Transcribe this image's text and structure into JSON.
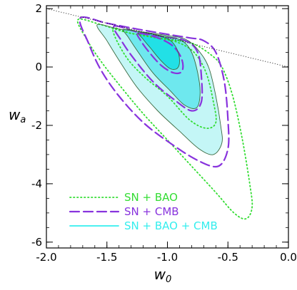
{
  "chart_data": {
    "type": "contour",
    "xlabel": "w",
    "xlabel_sub": "0",
    "ylabel": "w",
    "ylabel_sub": "a",
    "xlim": [
      -2.0,
      0.0
    ],
    "ylim": [
      -6.2,
      2.1
    ],
    "xticks": [
      -2.0,
      -1.5,
      -1.0,
      -0.5,
      0.0
    ],
    "xtick_labels": [
      "-2.0",
      "-1.5",
      "-1.0",
      "-0.5",
      "0.0"
    ],
    "yticks": [
      2,
      0,
      -2,
      -4,
      -6
    ],
    "ytick_labels": [
      "2",
      "0",
      "-2",
      "-4",
      "-6"
    ],
    "grid": false,
    "legend_position": "bottom-left",
    "reference_line": {
      "style": "dotted",
      "color": "#000000",
      "points": [
        [
          -2.0,
          2.0
        ],
        [
          0.0,
          0.0
        ]
      ]
    },
    "series": [
      {
        "name": "SN + BAO",
        "style": "dotted",
        "color": "#33dd33",
        "contours": [
          [
            [
              -1.74,
              1.62
            ],
            [
              -1.55,
              1.45
            ],
            [
              -1.35,
              1.2
            ],
            [
              -1.15,
              1.05
            ],
            [
              -0.95,
              0.92
            ],
            [
              -0.8,
              0.82
            ],
            [
              -0.65,
              0.45
            ],
            [
              -0.55,
              0.0
            ],
            [
              -0.46,
              -1.0
            ],
            [
              -0.38,
              -2.5
            ],
            [
              -0.32,
              -4.0
            ],
            [
              -0.3,
              -4.8
            ],
            [
              -0.35,
              -5.2
            ],
            [
              -0.45,
              -5.0
            ],
            [
              -0.6,
              -4.3
            ],
            [
              -0.8,
              -3.4
            ],
            [
              -1.0,
              -2.5
            ],
            [
              -1.2,
              -1.6
            ],
            [
              -1.4,
              -0.6
            ],
            [
              -1.55,
              0.2
            ],
            [
              -1.66,
              0.9
            ],
            [
              -1.74,
              1.62
            ]
          ],
          [
            [
              -1.45,
              1.3
            ],
            [
              -1.3,
              1.15
            ],
            [
              -1.1,
              1.0
            ],
            [
              -0.92,
              0.85
            ],
            [
              -0.78,
              0.5
            ],
            [
              -0.68,
              -0.2
            ],
            [
              -0.62,
              -1.2
            ],
            [
              -0.6,
              -1.9
            ],
            [
              -0.68,
              -2.1
            ],
            [
              -0.82,
              -1.8
            ],
            [
              -1.0,
              -1.0
            ],
            [
              -1.2,
              -0.3
            ],
            [
              -1.35,
              0.4
            ],
            [
              -1.45,
              1.3
            ]
          ]
        ]
      },
      {
        "name": "SN + CMB",
        "style": "dashed",
        "color": "#8833dd",
        "contours": [
          [
            [
              -1.72,
              1.68
            ],
            [
              -1.5,
              1.5
            ],
            [
              -1.25,
              1.3
            ],
            [
              -1.0,
              1.12
            ],
            [
              -0.82,
              1.0
            ],
            [
              -0.7,
              0.9
            ],
            [
              -0.6,
              0.5
            ],
            [
              -0.53,
              -0.5
            ],
            [
              -0.5,
              -1.8
            ],
            [
              -0.5,
              -2.8
            ],
            [
              -0.58,
              -3.4
            ],
            [
              -0.75,
              -3.2
            ],
            [
              -0.98,
              -2.6
            ],
            [
              -1.2,
              -1.9
            ],
            [
              -1.4,
              -1.0
            ],
            [
              -1.55,
              -0.1
            ],
            [
              -1.65,
              0.8
            ],
            [
              -1.72,
              1.68
            ]
          ],
          [
            [
              -1.44,
              1.4
            ],
            [
              -1.25,
              1.2
            ],
            [
              -1.05,
              1.05
            ],
            [
              -0.85,
              0.9
            ],
            [
              -0.75,
              0.5
            ],
            [
              -0.72,
              -0.3
            ],
            [
              -0.72,
              -1.2
            ],
            [
              -0.8,
              -1.5
            ],
            [
              -0.95,
              -1.1
            ],
            [
              -1.12,
              -0.5
            ],
            [
              -1.28,
              0.3
            ],
            [
              -1.38,
              0.9
            ],
            [
              -1.44,
              1.4
            ]
          ],
          [
            [
              -1.24,
              1.15
            ],
            [
              -1.08,
              1.0
            ],
            [
              -0.95,
              0.7
            ],
            [
              -0.88,
              0.25
            ],
            [
              -0.88,
              -0.15
            ],
            [
              -0.95,
              -0.2
            ],
            [
              -1.05,
              0.05
            ],
            [
              -1.15,
              0.5
            ],
            [
              -1.22,
              0.9
            ],
            [
              -1.24,
              1.15
            ]
          ]
        ]
      },
      {
        "name": "SN + BAO + CMB",
        "style": "solid",
        "color": "#33eeee",
        "contours": [
          [
            [
              -1.58,
              1.45
            ],
            [
              -1.4,
              1.3
            ],
            [
              -1.2,
              1.2
            ],
            [
              -1.0,
              1.08
            ],
            [
              -0.85,
              0.95
            ],
            [
              -0.75,
              0.6
            ],
            [
              -0.66,
              0.0
            ],
            [
              -0.6,
              -1.0
            ],
            [
              -0.56,
              -2.0
            ],
            [
              -0.55,
              -2.6
            ],
            [
              -0.62,
              -3.0
            ],
            [
              -0.74,
              -2.8
            ],
            [
              -0.9,
              -2.2
            ],
            [
              -1.08,
              -1.5
            ],
            [
              -1.25,
              -0.7
            ],
            [
              -1.38,
              0.1
            ],
            [
              -1.5,
              0.9
            ],
            [
              -1.58,
              1.45
            ]
          ],
          [
            [
              -1.36,
              1.3
            ],
            [
              -1.2,
              1.18
            ],
            [
              -1.02,
              1.05
            ],
            [
              -0.88,
              0.9
            ],
            [
              -0.8,
              0.5
            ],
            [
              -0.75,
              -0.2
            ],
            [
              -0.73,
              -0.9
            ],
            [
              -0.76,
              -1.4
            ],
            [
              -0.86,
              -1.3
            ],
            [
              -0.98,
              -0.8
            ],
            [
              -1.12,
              -0.2
            ],
            [
              -1.24,
              0.5
            ],
            [
              -1.32,
              1.0
            ],
            [
              -1.36,
              1.3
            ]
          ],
          [
            [
              -1.24,
              1.2
            ],
            [
              -1.1,
              1.1
            ],
            [
              -0.98,
              0.92
            ],
            [
              -0.92,
              0.6
            ],
            [
              -0.9,
              0.2
            ],
            [
              -0.92,
              -0.05
            ],
            [
              -0.98,
              -0.05
            ],
            [
              -1.06,
              0.25
            ],
            [
              -1.14,
              0.65
            ],
            [
              -1.2,
              0.95
            ],
            [
              -1.24,
              1.2
            ]
          ]
        ]
      }
    ]
  },
  "legend": {
    "items": [
      {
        "label": "SN + BAO",
        "color": "#33dd33",
        "style": "dotted"
      },
      {
        "label": "SN + CMB",
        "color": "#8833dd",
        "style": "dashed"
      },
      {
        "label": "SN + BAO + CMB",
        "color": "#33eeee",
        "style": "solid"
      }
    ]
  }
}
